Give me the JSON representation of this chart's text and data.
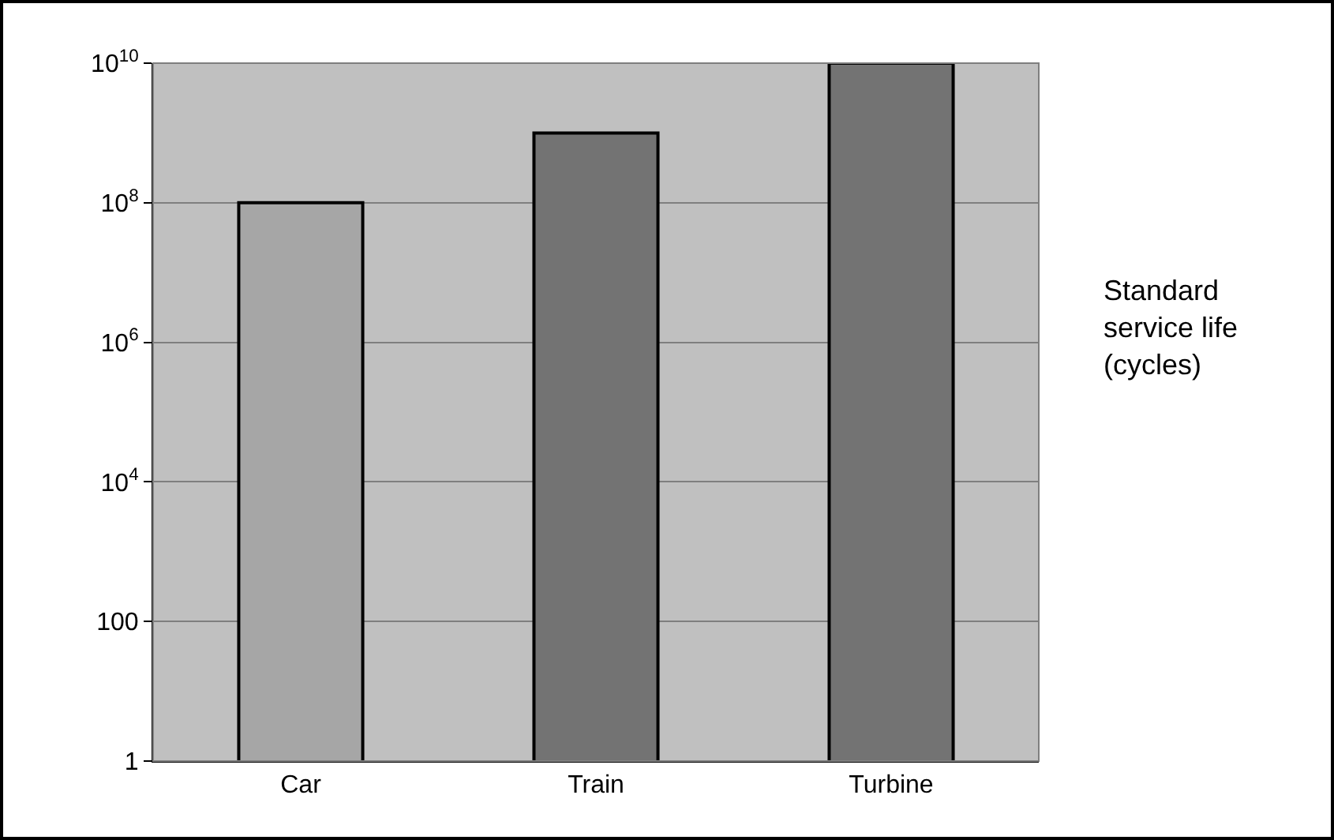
{
  "chart_data": {
    "type": "bar",
    "ylabel": "Standard service life (cycles)",
    "categories": [
      "Car",
      "Train",
      "Turbine"
    ],
    "values": [
      100000000,
      1000000000,
      10000000000
    ],
    "colors": [
      "#a6a6a6",
      "#737373",
      "#737373"
    ],
    "log": true,
    "ylim": [
      1,
      10000000000
    ],
    "yticks": [
      {
        "value": 1,
        "label": "1"
      },
      {
        "value": 100,
        "label": "100"
      },
      {
        "value": 10000,
        "label": "10$^{4}$"
      },
      {
        "value": 1000000,
        "label": "10$^{6}$"
      },
      {
        "value": 100000000,
        "label": "10$^{8}$"
      },
      {
        "value": 10000000000,
        "label": "10$^{10}$"
      }
    ],
    "grid": "y",
    "legend": false
  }
}
